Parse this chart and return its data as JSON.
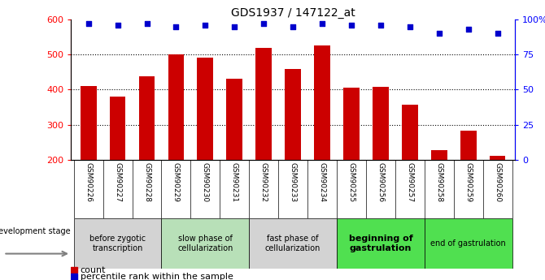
{
  "title": "GDS1937 / 147122_at",
  "samples": [
    "GSM90226",
    "GSM90227",
    "GSM90228",
    "GSM90229",
    "GSM90230",
    "GSM90231",
    "GSM90232",
    "GSM90233",
    "GSM90234",
    "GSM90255",
    "GSM90256",
    "GSM90257",
    "GSM90258",
    "GSM90259",
    "GSM90260"
  ],
  "counts": [
    410,
    380,
    438,
    500,
    492,
    432,
    520,
    458,
    527,
    405,
    408,
    357,
    228,
    282,
    210
  ],
  "percentiles": [
    97,
    96,
    97,
    95,
    96,
    95,
    97,
    95,
    97,
    96,
    96,
    95,
    90,
    93,
    90
  ],
  "bar_color": "#cc0000",
  "dot_color": "#0000cc",
  "ylim_left": [
    200,
    600
  ],
  "ylim_right": [
    0,
    100
  ],
  "yticks_left": [
    200,
    300,
    400,
    500,
    600
  ],
  "yticks_right": [
    0,
    25,
    50,
    75,
    100
  ],
  "ytick_labels_right": [
    "0",
    "25",
    "50",
    "75",
    "100%"
  ],
  "stages": [
    {
      "label": "before zygotic\ntranscription",
      "span": [
        0,
        3
      ],
      "color": "#d3d3d3",
      "bold": false,
      "fontsize": 7
    },
    {
      "label": "slow phase of\ncellularization",
      "span": [
        3,
        6
      ],
      "color": "#b8e0b8",
      "bold": false,
      "fontsize": 7
    },
    {
      "label": "fast phase of\ncellularization",
      "span": [
        6,
        9
      ],
      "color": "#d3d3d3",
      "bold": false,
      "fontsize": 7
    },
    {
      "label": "beginning of\ngastrulation",
      "span": [
        9,
        12
      ],
      "color": "#50e050",
      "bold": true,
      "fontsize": 8
    },
    {
      "label": "end of gastrulation",
      "span": [
        12,
        15
      ],
      "color": "#50e050",
      "bold": false,
      "fontsize": 7
    }
  ],
  "legend_count_label": "count",
  "legend_percentile_label": "percentile rank within the sample",
  "dev_stage_label": "development stage",
  "bar_width": 0.55
}
